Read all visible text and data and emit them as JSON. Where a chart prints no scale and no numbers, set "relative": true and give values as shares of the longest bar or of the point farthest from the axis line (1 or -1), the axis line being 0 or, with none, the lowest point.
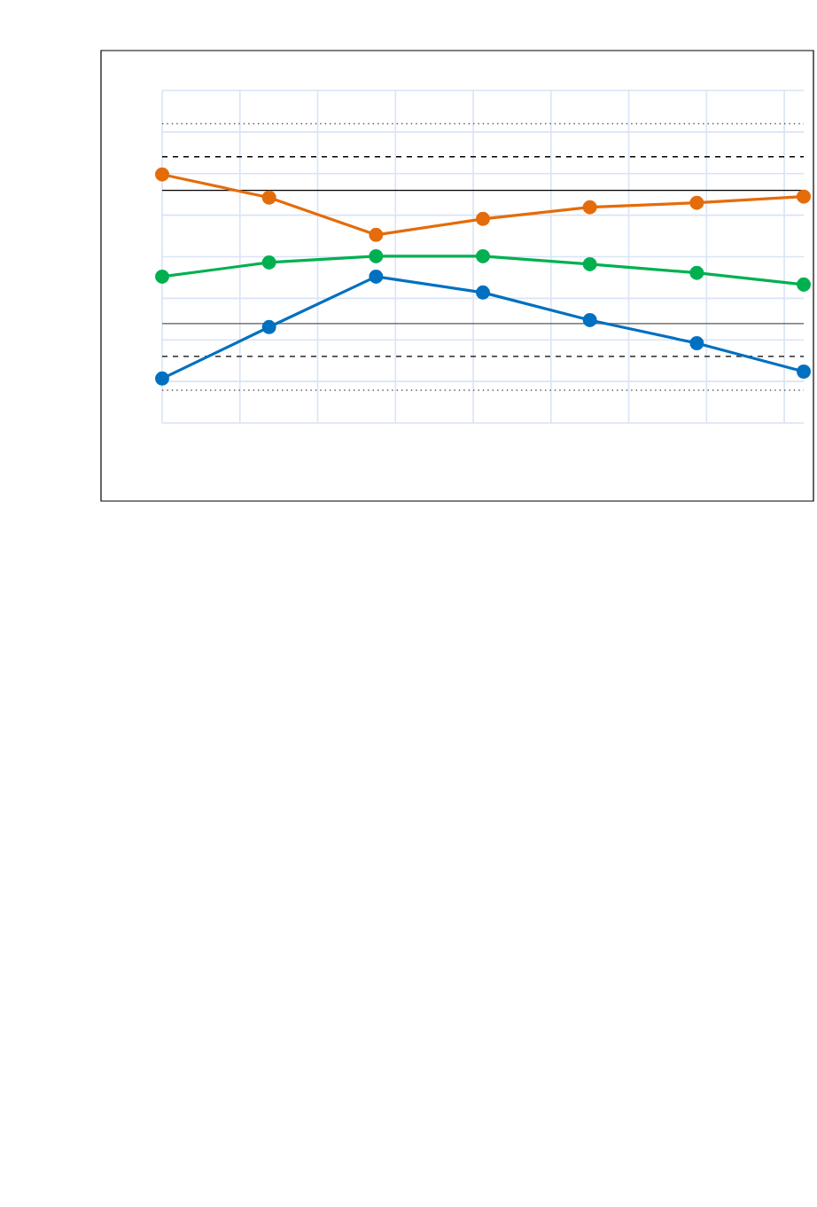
{
  "chart_data": {
    "type": "line",
    "relative": true,
    "marker": "circle",
    "line_style": "solid",
    "grid": true,
    "categories": [
      null,
      null,
      null,
      null,
      null,
      null,
      null
    ],
    "series": [
      {
        "color": "#0070c0",
        "values": [
          0.179,
          0.386,
          0.589,
          0.525,
          0.414,
          0.321,
          0.207
        ]
      },
      {
        "color": "#00b050",
        "values": [
          0.589,
          0.646,
          0.671,
          0.671,
          0.639,
          0.604,
          0.557
        ]
      },
      {
        "color": "#e46c0a",
        "values": [
          1.0,
          0.907,
          0.757,
          0.821,
          0.868,
          0.886,
          0.911
        ]
      }
    ],
    "ref_lines": [
      {
        "axis": "y",
        "value": 1.204,
        "color": "#595959",
        "line_style": "dotted"
      },
      {
        "axis": "y",
        "value": 1.071,
        "color": "#000000",
        "line_style": "dashed"
      },
      {
        "axis": "y",
        "value": 0.936,
        "color": "#000000",
        "line_style": "solid"
      },
      {
        "axis": "y",
        "value": 0.4,
        "color": "#595959",
        "line_style": "solid"
      },
      {
        "axis": "y",
        "value": 0.268,
        "color": "#000000",
        "line_style": "dashed"
      },
      {
        "axis": "y",
        "value": 0.132,
        "color": "#595959",
        "line_style": "dotted"
      }
    ]
  }
}
